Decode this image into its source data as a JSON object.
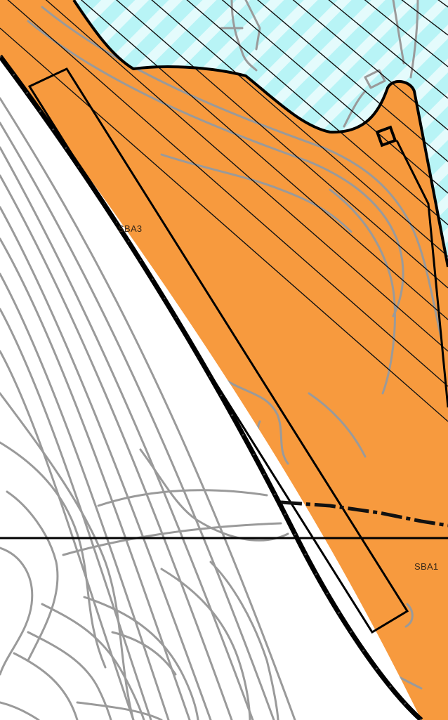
{
  "map": {
    "zones": [
      {
        "label": "SBA3"
      },
      {
        "label": "SBA1"
      }
    ],
    "legend_colors": {
      "zone_fill": "#f79a3e",
      "water_fill": "#b8f4f6",
      "water_stripe": "#e4fbfc",
      "hatch": "#000000",
      "contour": "#9a9a9a",
      "boundary": "#000000",
      "background": "#ffffff"
    }
  }
}
